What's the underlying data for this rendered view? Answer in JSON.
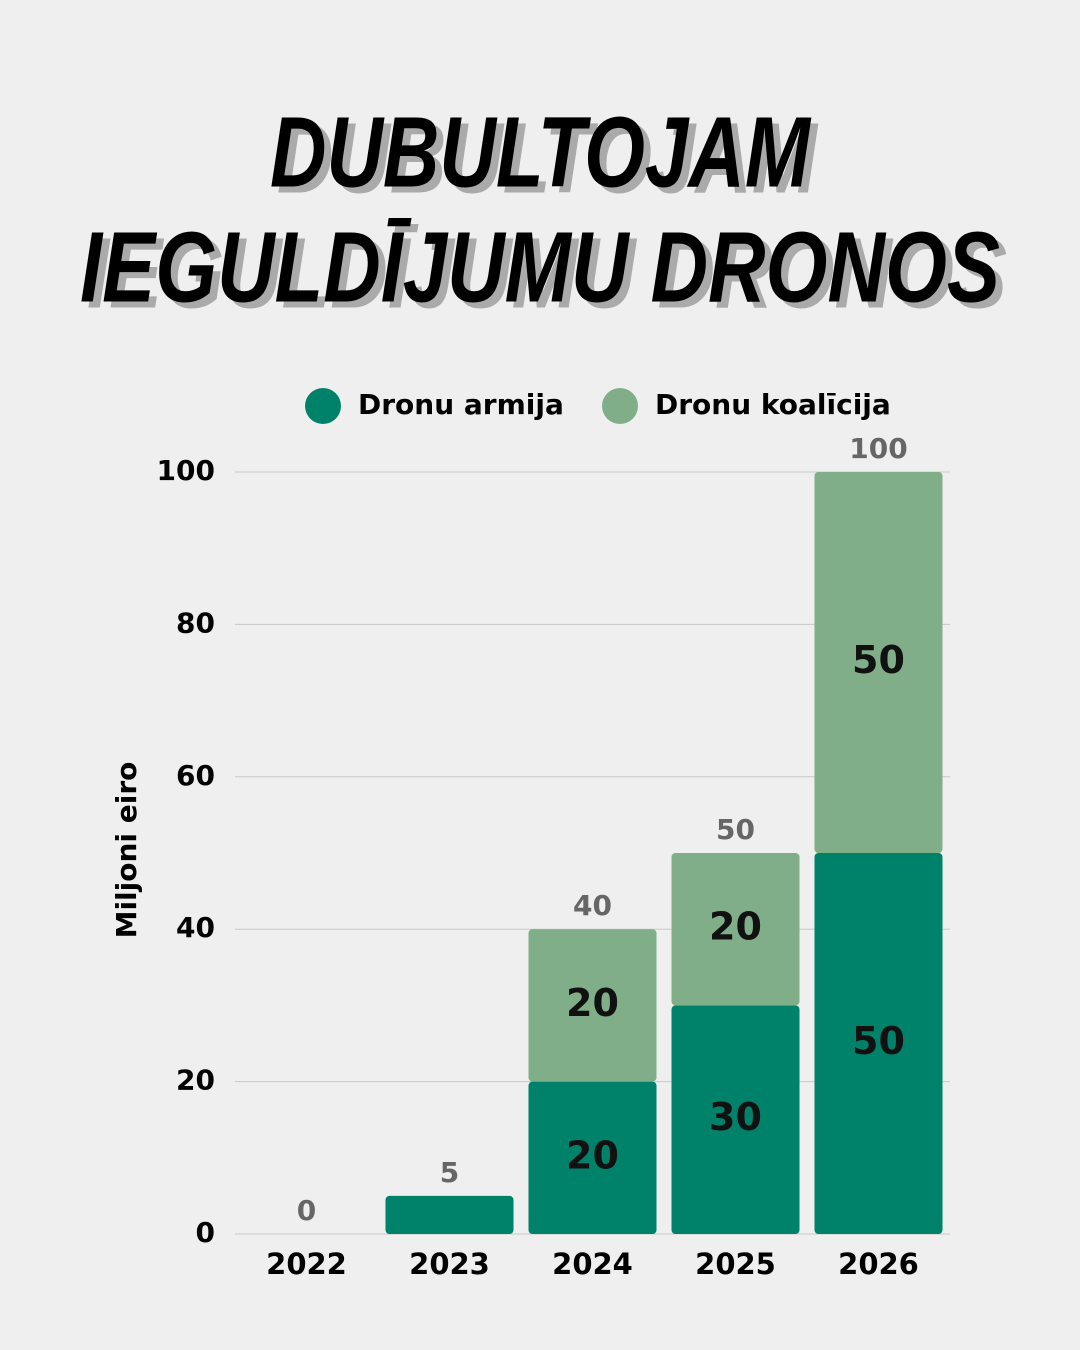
{
  "chart_data": {
    "type": "stacked_bar",
    "title": [
      "DUBULTOJAM",
      "IEGULDĪJUMU DRONOS"
    ],
    "y_label": "Miljoni eiro",
    "categories": [
      "2022",
      "2023",
      "2024",
      "2025",
      "2026"
    ],
    "series": [
      {
        "name": "Dronu armija",
        "color": "#00826a",
        "values": [
          0,
          5,
          20,
          30,
          50
        ]
      },
      {
        "name": "Dronu koalīcija",
        "color": "#7fae88",
        "values": [
          null,
          null,
          20,
          20,
          50
        ]
      }
    ],
    "totals": [
      0,
      5,
      40,
      50,
      100
    ],
    "ylim": [
      0,
      100
    ],
    "yticks": [
      0,
      20,
      40,
      60,
      80,
      100
    ],
    "grid": true
  }
}
